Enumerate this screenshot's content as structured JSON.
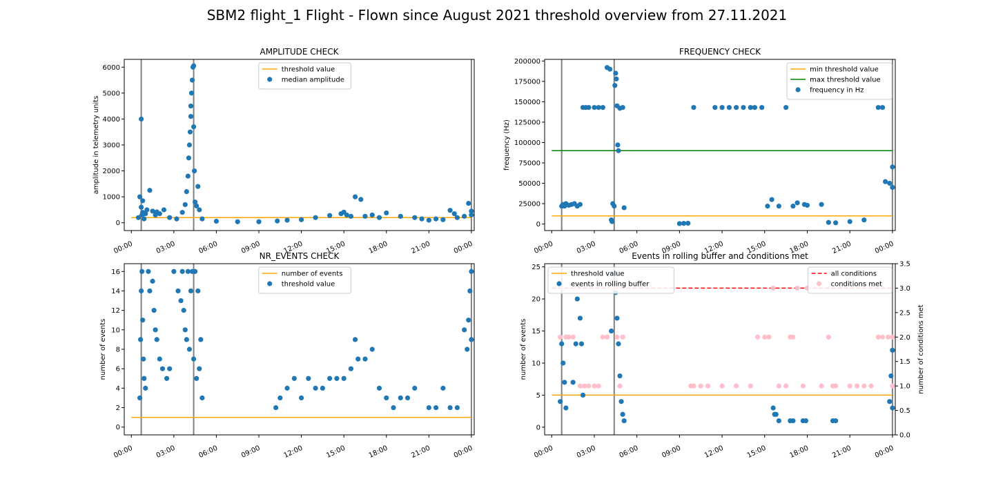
{
  "figure": {
    "title": "SBM2 flight_1 Flight - Flown since August 2021 threshold overview from 27.11.2021"
  },
  "colors": {
    "scatter": "#1f77b4",
    "threshold": "#ffa500",
    "max_threshold": "#008000",
    "all_conditions": "#ff0000",
    "conditions_met": "#ffc0cb",
    "vline": "#808080"
  },
  "chart_data": [
    {
      "id": "amplitude",
      "type": "scatter",
      "title": "AMPLITUDE CHECK",
      "xlabel": "",
      "ylabel": "amplitude in telemetry units",
      "xlim": [
        -0.5,
        24.2
      ],
      "ylim": [
        -300,
        6300
      ],
      "x_ticks": [
        0,
        3,
        6,
        9,
        12,
        15,
        18,
        21,
        24
      ],
      "x_tick_labels": [
        "00:00",
        "03:00",
        "06:00",
        "09:00",
        "12:00",
        "15:00",
        "18:00",
        "21:00",
        "00:00"
      ],
      "y_ticks": [
        0,
        1000,
        2000,
        3000,
        4000,
        5000,
        6000
      ],
      "vlines": [
        0.7,
        4.4,
        24
      ],
      "legend": {
        "placement": "upper-center",
        "entries": [
          "threshold value",
          "median amplitude"
        ]
      },
      "series": [
        {
          "name": "threshold value",
          "kind": "line",
          "x": [
            0,
            24
          ],
          "y": [
            200,
            200
          ]
        },
        {
          "name": "median amplitude",
          "kind": "scatter",
          "x": [
            0.5,
            0.6,
            0.7,
            0.7,
            0.75,
            0.8,
            0.8,
            0.9,
            1.0,
            1.1,
            1.3,
            1.5,
            1.7,
            1.8,
            2.0,
            2.3,
            2.7,
            3.2,
            3.6,
            3.8,
            3.9,
            4.0,
            4.05,
            4.1,
            4.15,
            4.2,
            4.2,
            4.25,
            4.3,
            4.35,
            4.4,
            4.4,
            4.45,
            4.5,
            4.6,
            4.7,
            4.8,
            5.0,
            6.0,
            7.5,
            9.0,
            10.3,
            11.0,
            12.0,
            13.0,
            14.0,
            14.8,
            15.0,
            15.2,
            15.5,
            15.8,
            16.2,
            16.5,
            17.0,
            17.5,
            18.0,
            19.0,
            20.0,
            20.5,
            21.0,
            21.5,
            22.0,
            22.5,
            22.8,
            23.0,
            23.5,
            23.8,
            24.0,
            24.0
          ],
          "y": [
            200,
            1000,
            600,
            4000,
            300,
            850,
            400,
            150,
            350,
            500,
            1250,
            450,
            300,
            420,
            350,
            500,
            200,
            150,
            400,
            700,
            1200,
            1800,
            2500,
            3000,
            3500,
            4100,
            4500,
            5000,
            5500,
            6000,
            6050,
            3700,
            2000,
            800,
            650,
            1400,
            500,
            150,
            60,
            40,
            40,
            70,
            100,
            120,
            200,
            280,
            350,
            410,
            300,
            250,
            1000,
            900,
            250,
            300,
            200,
            380,
            250,
            200,
            150,
            100,
            150,
            120,
            480,
            350,
            200,
            250,
            750,
            450,
            300
          ]
        }
      ]
    },
    {
      "id": "frequency",
      "type": "scatter",
      "title": "FREQUENCY CHECK",
      "xlabel": "",
      "ylabel": "frequency (Hz)",
      "xlim": [
        -0.5,
        24.2
      ],
      "ylim": [
        -8000,
        202000
      ],
      "x_ticks": [
        0,
        3,
        6,
        9,
        12,
        15,
        18,
        21,
        24
      ],
      "x_tick_labels": [
        "00:00",
        "03:00",
        "06:00",
        "09:00",
        "12:00",
        "15:00",
        "18:00",
        "21:00",
        "00:00"
      ],
      "y_ticks": [
        0,
        25000,
        50000,
        75000,
        100000,
        125000,
        150000,
        175000,
        200000
      ],
      "vlines": [
        0.7,
        4.4,
        24
      ],
      "legend": {
        "placement": "upper-right",
        "entries": [
          "min threshold value",
          "max threshold value",
          "frequency in Hz"
        ]
      },
      "series": [
        {
          "name": "min threshold value",
          "kind": "line",
          "x": [
            0,
            24
          ],
          "y": [
            10000,
            10000
          ]
        },
        {
          "name": "max threshold value",
          "kind": "line",
          "x": [
            0,
            24
          ],
          "y": [
            90000,
            90000
          ]
        },
        {
          "name": "frequency in Hz",
          "kind": "scatter",
          "x": [
            0.7,
            0.8,
            0.9,
            1.0,
            1.2,
            1.4,
            1.6,
            1.8,
            2.0,
            2.2,
            2.4,
            2.6,
            3.0,
            3.3,
            3.6,
            3.9,
            4.1,
            4.2,
            4.25,
            4.3,
            4.4,
            4.45,
            4.5,
            4.55,
            4.6,
            4.65,
            4.7,
            4.8,
            5.0,
            5.1,
            9.0,
            9.3,
            9.6,
            10.0,
            11.5,
            12.0,
            12.5,
            13.0,
            13.5,
            14.0,
            14.3,
            14.8,
            15.2,
            15.5,
            16.0,
            16.5,
            17.0,
            17.3,
            17.8,
            18.0,
            19.0,
            19.5,
            20.0,
            21.0,
            22.0,
            23.0,
            23.3,
            23.5,
            23.8,
            24.0,
            24.0
          ],
          "y": [
            22000,
            24000,
            22000,
            25000,
            23000,
            24000,
            25000,
            22000,
            24000,
            143000,
            143000,
            143000,
            143000,
            143000,
            143000,
            192000,
            190000,
            5000,
            3000,
            25000,
            22000,
            170000,
            185000,
            178000,
            145000,
            97000,
            90000,
            142000,
            143000,
            20000,
            500,
            800,
            1000,
            143000,
            143000,
            143000,
            143000,
            143000,
            143000,
            143000,
            143000,
            143000,
            22000,
            30000,
            22000,
            143000,
            22000,
            26000,
            24000,
            23000,
            24000,
            2000,
            1500,
            3000,
            5000,
            143000,
            143000,
            52000,
            50000,
            70000,
            45000
          ]
        }
      ]
    },
    {
      "id": "nr_events",
      "type": "scatter",
      "title": "NR_EVENTS CHECK",
      "xlabel": "",
      "ylabel": "number of events",
      "xlim": [
        -0.5,
        24.2
      ],
      "ylim": [
        -0.8,
        16.8
      ],
      "x_ticks": [
        0,
        3,
        6,
        9,
        12,
        15,
        18,
        21,
        24
      ],
      "x_tick_labels": [
        "00:00",
        "03:00",
        "06:00",
        "09:00",
        "12:00",
        "15:00",
        "18:00",
        "21:00",
        "00:00"
      ],
      "y_ticks": [
        0,
        2,
        4,
        6,
        8,
        10,
        12,
        14,
        16
      ],
      "vlines": [
        0.7,
        4.4,
        24
      ],
      "legend": {
        "placement": "upper-center",
        "entries": [
          "number of events",
          "threshold value"
        ]
      },
      "series": [
        {
          "name": "number of events",
          "kind": "line",
          "x": [
            0,
            24
          ],
          "y": [
            1,
            1
          ]
        },
        {
          "name": "threshold value",
          "kind": "scatter",
          "x": [
            0.6,
            0.65,
            0.7,
            0.75,
            0.8,
            0.85,
            0.9,
            1.0,
            1.2,
            1.3,
            1.5,
            1.6,
            1.7,
            1.8,
            2.0,
            2.2,
            2.5,
            2.7,
            3.0,
            3.3,
            3.5,
            3.6,
            3.7,
            3.8,
            3.9,
            4.0,
            4.1,
            4.2,
            4.3,
            4.4,
            4.5,
            4.6,
            4.7,
            4.8,
            4.9,
            5.0,
            10.2,
            10.5,
            11.0,
            11.5,
            12.0,
            12.5,
            13.0,
            13.5,
            14.0,
            14.5,
            15.0,
            15.5,
            15.8,
            16.0,
            16.5,
            17.0,
            17.5,
            18.0,
            18.5,
            19.0,
            19.5,
            20.0,
            21.0,
            21.5,
            22.0,
            22.5,
            23.0,
            23.5,
            23.7,
            23.8,
            23.9,
            24.0,
            24.0
          ],
          "y": [
            3,
            9,
            14,
            16,
            11,
            7,
            5,
            4,
            16,
            14,
            15,
            12,
            10,
            9,
            7,
            6,
            5,
            6,
            16,
            14,
            13,
            16,
            12,
            10,
            9,
            16,
            8,
            14,
            16,
            7,
            16,
            5,
            14,
            6,
            9,
            3,
            2,
            3,
            4,
            5,
            3,
            5,
            4,
            4,
            5,
            5,
            5,
            6,
            9,
            7,
            7,
            8,
            4,
            3,
            2,
            3,
            3,
            4,
            2,
            2,
            4,
            2,
            2,
            10,
            8,
            11,
            14,
            16,
            9
          ]
        }
      ]
    },
    {
      "id": "rolling_buffer",
      "type": "scatter",
      "title": "Events in rolling buffer and conditions met",
      "xlabel": "",
      "ylabel": "number of events",
      "y2label": "number of conditions met",
      "xlim": [
        -0.5,
        24.2
      ],
      "ylim": [
        -1.2,
        25.5
      ],
      "y2lim": [
        0,
        3.5
      ],
      "x_ticks": [
        0,
        3,
        6,
        9,
        12,
        15,
        18,
        21,
        24
      ],
      "x_tick_labels": [
        "00:00",
        "03:00",
        "06:00",
        "09:00",
        "12:00",
        "15:00",
        "18:00",
        "21:00",
        "00:00"
      ],
      "y_ticks": [
        0,
        5,
        10,
        15,
        20,
        25
      ],
      "y2_ticks": [
        0.0,
        0.5,
        1.0,
        1.5,
        2.0,
        2.5,
        3.0,
        3.5
      ],
      "y2_tick_labels": [
        "0.0",
        "0.5",
        "1.0",
        "1.5",
        "2.0",
        "2.5",
        "3.0",
        "3.5"
      ],
      "vlines": [
        0.7,
        4.4,
        24
      ],
      "legend_left": {
        "placement": "upper-left",
        "entries": [
          "threshold value",
          "events in rolling buffer"
        ]
      },
      "legend_right": {
        "placement": "upper-right",
        "entries": [
          "all conditions",
          "conditions met"
        ]
      },
      "series": [
        {
          "name": "threshold value",
          "kind": "line",
          "axis": "y",
          "x": [
            0,
            24
          ],
          "y": [
            5,
            5
          ]
        },
        {
          "name": "all conditions",
          "kind": "dashed-line",
          "axis": "y2",
          "x": [
            0,
            24
          ],
          "y": [
            3,
            3
          ]
        },
        {
          "name": "events in rolling buffer",
          "kind": "scatter",
          "axis": "y",
          "x": [
            0.6,
            0.7,
            0.8,
            0.9,
            1.0,
            1.5,
            1.7,
            1.8,
            1.9,
            2.0,
            2.1,
            2.2,
            4.2,
            4.3,
            4.4,
            4.5,
            4.6,
            4.7,
            4.8,
            4.9,
            5.0,
            5.1,
            15.6,
            15.7,
            15.8,
            16.0,
            16.8,
            17.0,
            17.7,
            17.9,
            19.8,
            20.0,
            23.8,
            23.9,
            24.0,
            24.0
          ],
          "y": [
            4,
            13,
            10,
            7,
            3,
            7,
            13,
            20,
            22,
            17,
            13,
            5,
            15,
            22,
            24,
            21,
            17,
            13,
            8,
            4,
            2,
            1,
            3,
            2,
            2,
            1,
            1,
            1,
            1,
            1,
            1,
            1,
            4,
            8,
            12,
            3
          ]
        },
        {
          "name": "conditions met",
          "kind": "scatter",
          "axis": "y2",
          "x": [
            0.6,
            0.8,
            1.0,
            1.2,
            1.5,
            1.7,
            2.0,
            2.3,
            2.6,
            3.0,
            3.3,
            3.6,
            3.9,
            4.2,
            4.4,
            4.6,
            4.8,
            5.0,
            9.8,
            10.0,
            10.5,
            11.0,
            12.0,
            13.0,
            14.0,
            14.5,
            15.0,
            15.3,
            15.6,
            16.0,
            16.5,
            16.8,
            17.0,
            17.3,
            17.7,
            18.0,
            19.0,
            19.5,
            19.8,
            20.0,
            21.0,
            21.5,
            22.0,
            22.5,
            23.0,
            23.3,
            23.7,
            24.0,
            24.0
          ],
          "y": [
            2,
            3,
            2,
            2,
            2,
            3,
            1,
            1,
            1,
            1,
            1,
            2,
            2,
            3,
            3,
            2,
            1,
            2,
            1,
            1,
            1,
            1,
            1,
            1,
            1,
            2,
            2,
            2,
            3,
            1,
            1,
            2,
            2,
            3,
            1,
            3,
            1,
            2,
            1,
            1,
            1,
            1,
            1,
            1,
            2,
            2,
            2,
            1,
            2
          ]
        }
      ]
    }
  ]
}
